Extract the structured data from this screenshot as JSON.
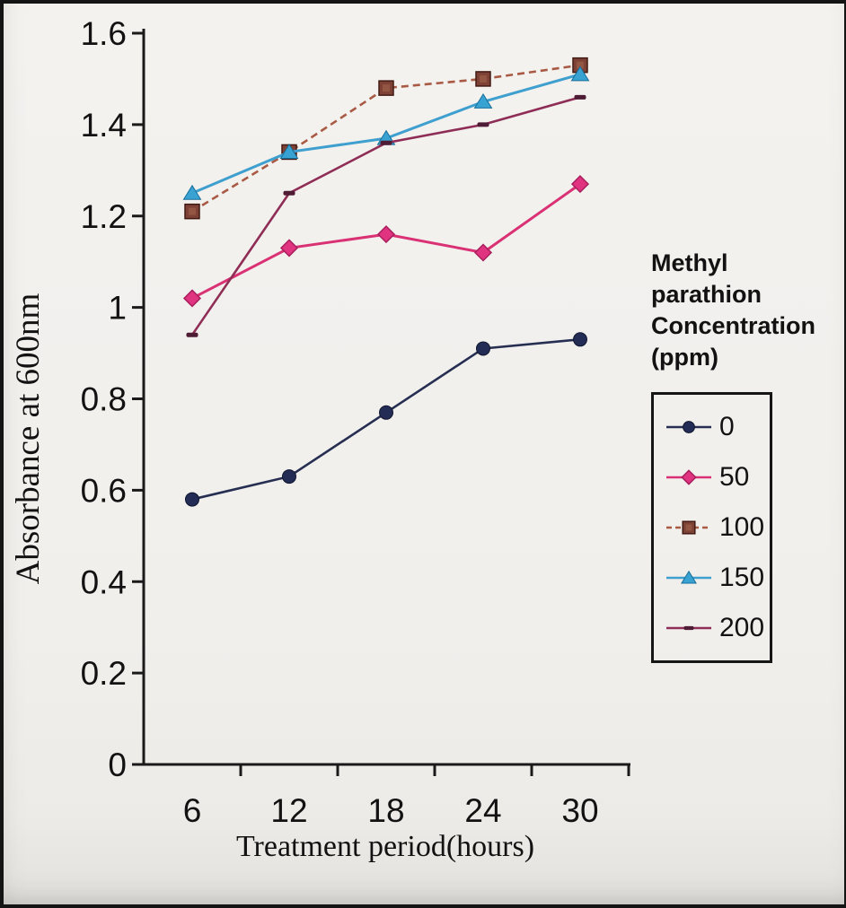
{
  "figure": {
    "y_axis_title": "Absorbance at 600nm",
    "x_axis_title": "Treatment period(hours)",
    "legend_title": "Methyl parathion\nConcentration\n(ppm)"
  },
  "chart_data": {
    "type": "line",
    "title": "",
    "xlabel": "Treatment period(hours)",
    "ylabel": "Absorbance at 600nm",
    "categories": [
      6,
      12,
      18,
      24,
      30
    ],
    "ylim": [
      0,
      1.6
    ],
    "ytick_step": 0.2,
    "ytick_labels": [
      "0",
      "0.2",
      "0.4",
      "0.6",
      "0.8",
      "1",
      "1.2",
      "1.4",
      "1.6"
    ],
    "grid": false,
    "legend_position": "right",
    "legend_title": "Methyl parathion\nConcentration\n(ppm)",
    "series": [
      {
        "name": "0",
        "marker": "circle",
        "color": "#232c54",
        "line_color": "#262e52",
        "line_style": "solid",
        "values": [
          0.58,
          0.63,
          0.77,
          0.91,
          0.93
        ]
      },
      {
        "name": "50",
        "marker": "diamond",
        "color": "#e03380",
        "line_color": "#d93174",
        "line_style": "solid",
        "values": [
          1.02,
          1.13,
          1.16,
          1.12,
          1.27
        ]
      },
      {
        "name": "100",
        "marker": "square",
        "color": "#7d4136",
        "line_color": "#a85a45",
        "line_style": "dashed",
        "values": [
          1.21,
          1.34,
          1.48,
          1.5,
          1.53
        ]
      },
      {
        "name": "150",
        "marker": "triangle",
        "color": "#38a2d2",
        "line_color": "#3f9fce",
        "line_style": "solid",
        "values": [
          1.25,
          1.34,
          1.37,
          1.45,
          1.51
        ]
      },
      {
        "name": "200",
        "marker": "dash",
        "color": "#4f1c35",
        "line_color": "#8e2d55",
        "line_style": "solid",
        "values": [
          0.94,
          1.25,
          1.36,
          1.4,
          1.46
        ]
      }
    ]
  },
  "colors": {
    "axis": "#1a1a1a",
    "text": "#121212",
    "paper": "#f1efec",
    "frame_border": "#141414"
  }
}
